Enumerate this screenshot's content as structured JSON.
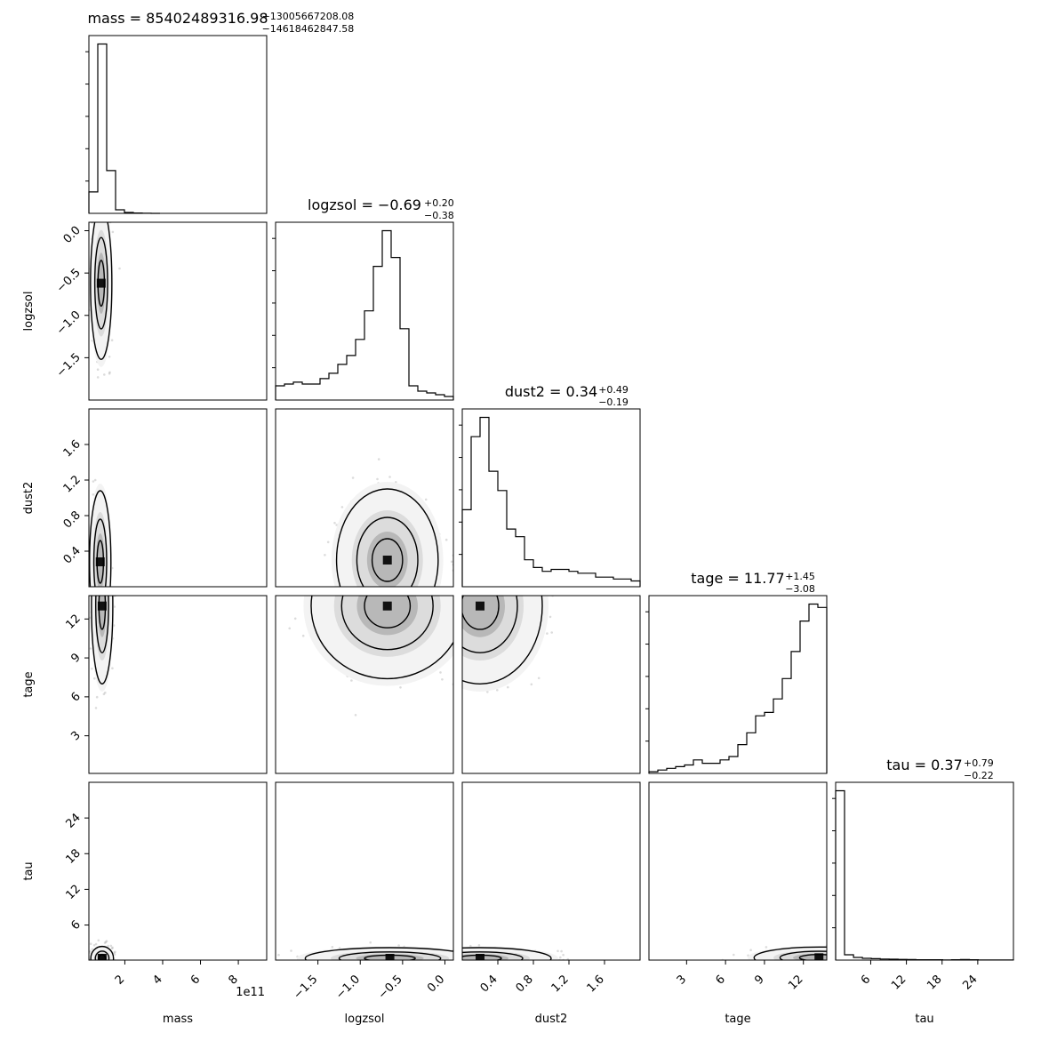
{
  "chart_data": {
    "type": "corner",
    "parameters": [
      {
        "name": "mass",
        "label": "mass",
        "range": [
          10000000000.0,
          950000000000.0
        ],
        "ticks": [
          200000000000.0,
          400000000000.0,
          600000000000.0,
          800000000000.0
        ],
        "tick_labels": [
          "2",
          "4",
          "6",
          "8"
        ],
        "offset_label": "1e11",
        "title": {
          "prefix": "mass = ",
          "value": "85402489316.98",
          "upper": "+13005667208.08",
          "lower": "−14618462847.58"
        }
      },
      {
        "name": "logzsol",
        "label": "logzsol",
        "range": [
          -2.0,
          0.1
        ],
        "ticks": [
          -1.5,
          -1.0,
          -0.5,
          0.0
        ],
        "tick_labels": [
          "−1.5",
          "−1.0",
          "−0.5",
          "0.0"
        ],
        "title": {
          "prefix": "logzsol = ",
          "value": "−0.69",
          "upper": "+0.20",
          "lower": "−0.38"
        }
      },
      {
        "name": "dust2",
        "label": "dust2",
        "range": [
          0.0,
          2.0
        ],
        "ticks": [
          0.4,
          0.8,
          1.2,
          1.6
        ],
        "tick_labels": [
          "0.4",
          "0.8",
          "1.2",
          "1.6"
        ],
        "title": {
          "prefix": "dust2 = ",
          "value": "0.34",
          "upper": "+0.49",
          "lower": "−0.19"
        }
      },
      {
        "name": "tage",
        "label": "tage",
        "range": [
          0.1,
          13.8
        ],
        "ticks": [
          3,
          6,
          9,
          12
        ],
        "tick_labels": [
          "3",
          "6",
          "9",
          "12"
        ],
        "title": {
          "prefix": "tage = ",
          "value": "11.77",
          "upper": "+1.45",
          "lower": "−3.08"
        }
      },
      {
        "name": "tau",
        "label": "tau",
        "range": [
          0.1,
          30.0
        ],
        "ticks": [
          6,
          12,
          18,
          24
        ],
        "tick_labels": [
          "6",
          "12",
          "18",
          "24"
        ],
        "title": {
          "prefix": "tau = ",
          "value": "0.37",
          "upper": "+0.79",
          "lower": "−0.22"
        }
      }
    ],
    "histograms": [
      {
        "param": "mass",
        "bin_edges": [
          10000000000.0,
          57000000000.0,
          104000000000.0,
          151000000000.0,
          198000000000.0,
          245000000000.0,
          292000000000.0,
          339000000000.0,
          386000000000.0
        ],
        "counts": [
          0.12,
          0.95,
          0.24,
          0.02,
          0.005,
          0.002,
          0.001,
          0.0
        ]
      },
      {
        "param": "logzsol",
        "bin_edges": [
          -2.0,
          -1.895,
          -1.79,
          -1.685,
          -1.58,
          -1.475,
          -1.37,
          -1.265,
          -1.16,
          -1.055,
          -0.95,
          -0.845,
          -0.74,
          -0.635,
          -0.53,
          -0.425,
          -0.32,
          -0.215,
          -0.11,
          -0.005,
          0.1
        ],
        "counts": [
          0.08,
          0.09,
          0.1,
          0.09,
          0.09,
          0.12,
          0.15,
          0.2,
          0.25,
          0.34,
          0.5,
          0.75,
          0.95,
          0.8,
          0.4,
          0.08,
          0.05,
          0.04,
          0.03,
          0.02
        ]
      },
      {
        "param": "dust2",
        "bin_edges": [
          0.0,
          0.1,
          0.2,
          0.3,
          0.4,
          0.5,
          0.6,
          0.7,
          0.8,
          0.9,
          1.0,
          1.1,
          1.2,
          1.3,
          1.4,
          1.5,
          1.6,
          1.7,
          1.8,
          1.9,
          2.0
        ],
        "counts": [
          0.4,
          0.78,
          0.88,
          0.6,
          0.5,
          0.3,
          0.26,
          0.14,
          0.1,
          0.08,
          0.09,
          0.09,
          0.08,
          0.07,
          0.07,
          0.05,
          0.05,
          0.04,
          0.04,
          0.03
        ]
      },
      {
        "param": "tage",
        "bin_edges": [
          0.1,
          0.785,
          1.47,
          2.155,
          2.84,
          3.525,
          4.21,
          4.895,
          5.58,
          6.265,
          6.95,
          7.635,
          8.32,
          9.005,
          9.69,
          10.375,
          11.06,
          11.745,
          12.43,
          13.115,
          13.8
        ],
        "counts": [
          0.01,
          0.02,
          0.03,
          0.04,
          0.05,
          0.08,
          0.06,
          0.06,
          0.08,
          0.1,
          0.17,
          0.24,
          0.34,
          0.36,
          0.44,
          0.56,
          0.72,
          0.9,
          1.0,
          0.98
        ]
      },
      {
        "param": "tau",
        "bin_edges": [
          0.1,
          1.6,
          3.1,
          4.6,
          6.1,
          7.6,
          9.1,
          10.6,
          12.1,
          13.6,
          15.1,
          16.6,
          18.1,
          19.6,
          21.1,
          22.6,
          24.1,
          25.6,
          27.1,
          28.6,
          30.0
        ],
        "counts": [
          0.95,
          0.03,
          0.015,
          0.01,
          0.008,
          0.006,
          0.005,
          0.004,
          0.003,
          0.002,
          0.002,
          0.002,
          0.001,
          0.002,
          0.003,
          0.002,
          0.001,
          0.001,
          0.001,
          0.001
        ]
      }
    ],
    "pairs": [
      {
        "x": "mass",
        "y": "logzsol",
        "peak": [
          75000000000.0,
          -0.62
        ],
        "spread": [
          25000000000.0,
          0.45
        ]
      },
      {
        "x": "mass",
        "y": "dust2",
        "peak": [
          70000000000.0,
          0.28
        ],
        "spread": [
          20000000000.0,
          0.4
        ]
      },
      {
        "x": "mass",
        "y": "tage",
        "peak": [
          80000000000.0,
          13.0
        ],
        "spread": [
          25000000000.0,
          3.0
        ]
      },
      {
        "x": "mass",
        "y": "tau",
        "peak": [
          80000000000.0,
          0.4
        ],
        "spread": [
          30000000000.0,
          1.0
        ]
      },
      {
        "x": "logzsol",
        "y": "dust2",
        "peak": [
          -0.68,
          0.3
        ],
        "spread": [
          0.3,
          0.4
        ]
      },
      {
        "x": "logzsol",
        "y": "tage",
        "peak": [
          -0.68,
          13.0
        ],
        "spread": [
          0.45,
          2.8
        ]
      },
      {
        "x": "logzsol",
        "y": "tau",
        "peak": [
          -0.65,
          0.4
        ],
        "spread": [
          0.5,
          0.8
        ]
      },
      {
        "x": "dust2",
        "y": "tage",
        "peak": [
          0.2,
          13.0
        ],
        "spread": [
          0.35,
          3.0
        ]
      },
      {
        "x": "dust2",
        "y": "tau",
        "peak": [
          0.2,
          0.4
        ],
        "spread": [
          0.4,
          0.8
        ]
      },
      {
        "x": "tage",
        "y": "tau",
        "peak": [
          13.2,
          0.5
        ],
        "spread": [
          2.5,
          0.9
        ]
      }
    ]
  }
}
